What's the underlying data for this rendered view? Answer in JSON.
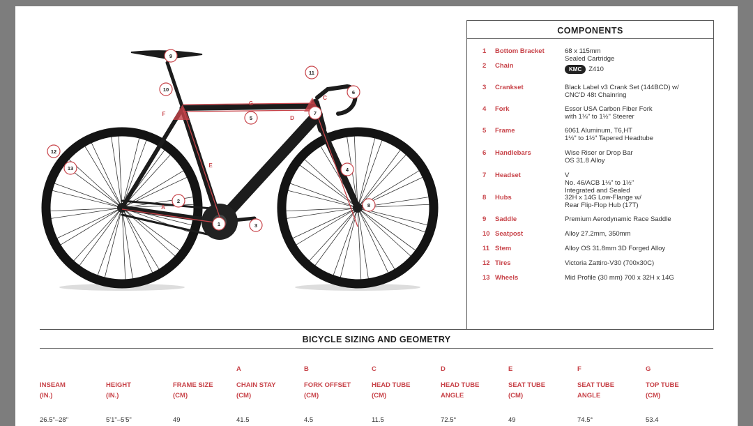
{
  "components": {
    "title": "COMPONENTS",
    "items": [
      {
        "num": "1",
        "name": "Bottom Bracket",
        "value": "68 x 115mm\nSealed Cartridge"
      },
      {
        "num": "2",
        "name": "Chain",
        "brand_logo": "KMC",
        "value": "Z410"
      },
      {
        "num": "3",
        "name": "Crankset",
        "value": "Black Label v3 Crank Set (144BCD) w/\nCNC'D 48t Chainring"
      },
      {
        "num": "4",
        "name": "Fork",
        "value": "Essor USA Carbon Fiber Fork\nwith 1⅛\" to 1½\" Steerer"
      },
      {
        "num": "5",
        "name": "Frame",
        "value": "6061 Aluminum, T6,HT\n1⅛\" to 1½\" Tapered Headtube"
      },
      {
        "num": "6",
        "name": "Handlebars",
        "value": "Wise Riser or Drop Bar\nOS 31.8 Alloy"
      },
      {
        "num": "7",
        "name": "Headset",
        "value": "V\nNo. 46/ACB 1⅛\" to 1½\"\nIntegrated and Sealed"
      },
      {
        "num": "8",
        "name": "Hubs",
        "value": "32H x 14G Low-Flange w/\nRear Flip-Flop Hub (17T)"
      },
      {
        "num": "9",
        "name": "Saddle",
        "value": "Premium Aerodynamic Race Saddle"
      },
      {
        "num": "10",
        "name": "Seatpost",
        "value": "Alloy 27.2mm, 350mm"
      },
      {
        "num": "11",
        "name": "Stem",
        "value": "Alloy OS 31.8mm 3D Forged Alloy"
      },
      {
        "num": "12",
        "name": "Tires",
        "value": "Victoria Zattiro-V30 (700x30C)"
      },
      {
        "num": "13",
        "name": "Wheels",
        "value": "Mid Profile (30 mm) 700 x 32H x 14G"
      }
    ]
  },
  "diagram": {
    "callouts": [
      "1",
      "2",
      "3",
      "4",
      "5",
      "6",
      "7",
      "8",
      "9",
      "10",
      "11",
      "12",
      "13"
    ],
    "letters": [
      "A",
      "C",
      "D",
      "E",
      "F",
      "G"
    ],
    "accent": "#c8444a"
  },
  "geometry": {
    "title": "BICYCLE SIZING AND GEOMETRY",
    "columns": [
      {
        "letter": "",
        "h1": "INSEAM",
        "h2": "(IN.)",
        "value": "26.5\"–28\""
      },
      {
        "letter": "",
        "h1": "HEIGHT",
        "h2": "(IN.)",
        "value": "5'1\"–5'5\""
      },
      {
        "letter": "",
        "h1": "FRAME SIZE",
        "h2": "(CM)",
        "value": "49"
      },
      {
        "letter": "A",
        "h1": "CHAIN STAY",
        "h2": "(CM)",
        "value": "41.5"
      },
      {
        "letter": "B",
        "h1": "FORK OFFSET",
        "h2": "(CM)",
        "value": "4.5"
      },
      {
        "letter": "C",
        "h1": "HEAD TUBE",
        "h2": "(CM)",
        "value": "11.5"
      },
      {
        "letter": "D",
        "h1": "HEAD TUBE",
        "h2": "ANGLE",
        "value": "72.5°"
      },
      {
        "letter": "E",
        "h1": "SEAT TUBE",
        "h2": "(CM)",
        "value": "49"
      },
      {
        "letter": "F",
        "h1": "SEAT TUBE",
        "h2": "ANGLE",
        "value": "74.5°"
      },
      {
        "letter": "G",
        "h1": "TOP TUBE",
        "h2": "(CM)",
        "value": "53.4"
      }
    ]
  }
}
